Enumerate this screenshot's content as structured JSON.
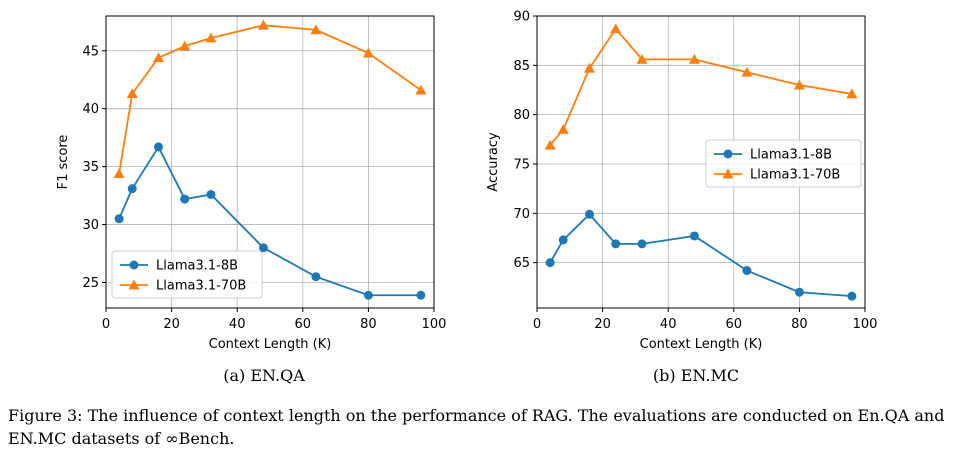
{
  "chart_data": [
    {
      "type": "line",
      "subcaption": "(a) EN.QA",
      "xlabel": "Context Length (K)",
      "ylabel": "F1 score",
      "xlim": [
        0,
        100
      ],
      "ylim": [
        22.8,
        48
      ],
      "xticks": [
        0,
        20,
        40,
        60,
        80,
        100
      ],
      "yticks": [
        25,
        30,
        35,
        40,
        45
      ],
      "grid": true,
      "legend_position": "lower-left",
      "series": [
        {
          "name": "Llama3.1-8B",
          "color": "#1f77b4",
          "marker": "circle",
          "x": [
            4,
            8,
            16,
            24,
            32,
            48,
            64,
            80,
            96
          ],
          "y": [
            30.5,
            33.1,
            36.7,
            32.2,
            32.6,
            28.0,
            25.5,
            23.9,
            23.9
          ]
        },
        {
          "name": "Llama3.1-70B",
          "color": "#ff7f0e",
          "marker": "triangle",
          "x": [
            4,
            8,
            16,
            24,
            32,
            48,
            64,
            80,
            96
          ],
          "y": [
            34.4,
            41.3,
            44.4,
            45.4,
            46.1,
            47.2,
            46.8,
            44.8,
            41.6
          ]
        }
      ]
    },
    {
      "type": "line",
      "subcaption": "(b) EN.MC",
      "xlabel": "Context Length (K)",
      "ylabel": "Accuracy",
      "xlim": [
        0,
        100
      ],
      "ylim": [
        60.4,
        90
      ],
      "xticks": [
        0,
        20,
        40,
        60,
        80,
        100
      ],
      "yticks": [
        65,
        70,
        75,
        80,
        85,
        90
      ],
      "grid": true,
      "legend_position": "center-right",
      "series": [
        {
          "name": "Llama3.1-8B",
          "color": "#1f77b4",
          "marker": "circle",
          "x": [
            4,
            8,
            16,
            24,
            32,
            48,
            64,
            80,
            96
          ],
          "y": [
            65.0,
            67.3,
            69.9,
            66.9,
            66.9,
            67.7,
            64.2,
            62.0,
            61.6
          ]
        },
        {
          "name": "Llama3.1-70B",
          "color": "#ff7f0e",
          "marker": "triangle",
          "x": [
            4,
            8,
            16,
            24,
            32,
            48,
            64,
            80,
            96
          ],
          "y": [
            76.9,
            78.5,
            84.7,
            88.7,
            85.6,
            85.6,
            84.3,
            83.0,
            82.1
          ]
        }
      ]
    }
  ],
  "caption": "Figure 3: The influence of context length on the performance of RAG. The evaluations are conducted on En.QA and EN.MC datasets of ∞Bench."
}
